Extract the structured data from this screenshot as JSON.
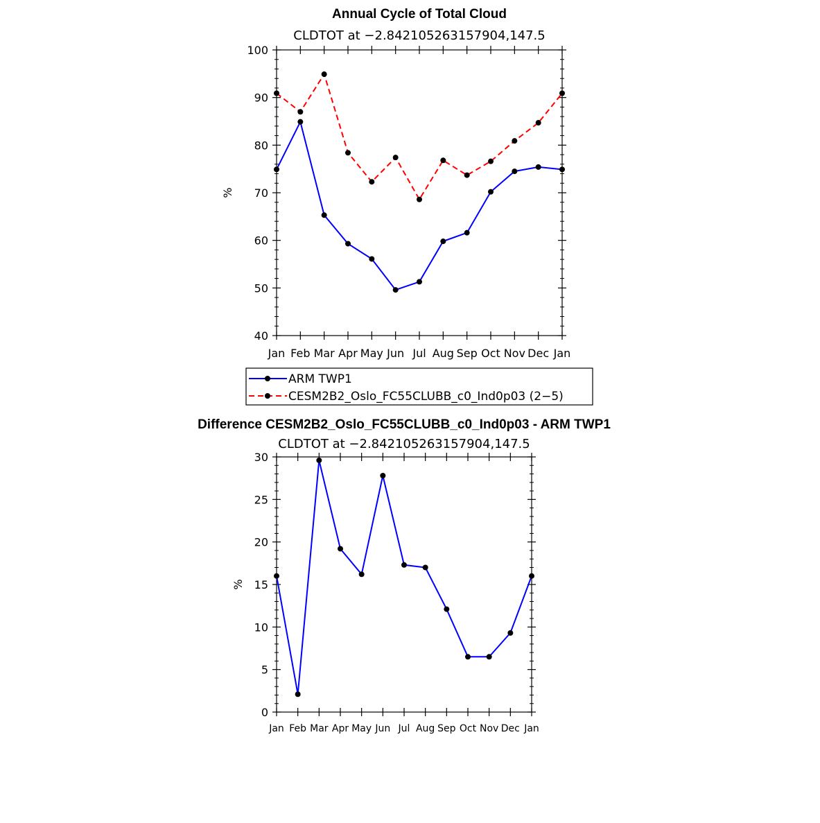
{
  "chart_data": [
    {
      "type": "line",
      "title": "Annual Cycle of Total Cloud",
      "subtitle": "CLDTOT at −2.842105263157904,147.5",
      "ylabel": "%",
      "xlabel": "",
      "ylim": [
        40,
        100
      ],
      "yticks": [
        "40",
        "50",
        "60",
        "70",
        "80",
        "90",
        "100"
      ],
      "categories": [
        "Jan",
        "Feb",
        "Mar",
        "Apr",
        "May",
        "Jun",
        "Jul",
        "Aug",
        "Sep",
        "Oct",
        "Nov",
        "Dec",
        "Jan"
      ],
      "series": [
        {
          "name": "ARM TWP1",
          "color": "#0000ff",
          "dash": "solid",
          "values": [
            74.9,
            84.9,
            65.3,
            59.3,
            56.1,
            49.6,
            51.3,
            59.8,
            61.6,
            70.2,
            74.5,
            75.4,
            74.9
          ]
        },
        {
          "name": "CESM2B2_Oslo_FC55CLUBB_c0_Ind0p03 (2−5)",
          "color": "#ff0000",
          "dash": "dashed",
          "values": [
            90.9,
            87.0,
            94.9,
            78.4,
            72.3,
            77.4,
            68.6,
            76.8,
            73.7,
            76.6,
            80.9,
            84.7,
            90.9
          ]
        }
      ],
      "legend_position": "below"
    },
    {
      "type": "line",
      "title": "Difference CESM2B2_Oslo_FC55CLUBB_c0_Ind0p03 - ARM TWP1",
      "subtitle": "CLDTOT at −2.842105263157904,147.5",
      "ylabel": "%",
      "xlabel": "",
      "ylim": [
        0,
        30
      ],
      "yticks": [
        "0",
        "5",
        "10",
        "15",
        "20",
        "25",
        "30"
      ],
      "categories": [
        "Jan",
        "Feb",
        "Mar",
        "Apr",
        "May",
        "Jun",
        "Jul",
        "Aug",
        "Sep",
        "Oct",
        "Nov",
        "Dec",
        "Jan"
      ],
      "series": [
        {
          "name": "Difference",
          "color": "#0000ff",
          "dash": "solid",
          "values": [
            16.0,
            2.1,
            29.6,
            19.2,
            16.2,
            27.8,
            17.3,
            17.0,
            12.1,
            6.5,
            6.5,
            9.3,
            16.0
          ]
        }
      ]
    }
  ]
}
